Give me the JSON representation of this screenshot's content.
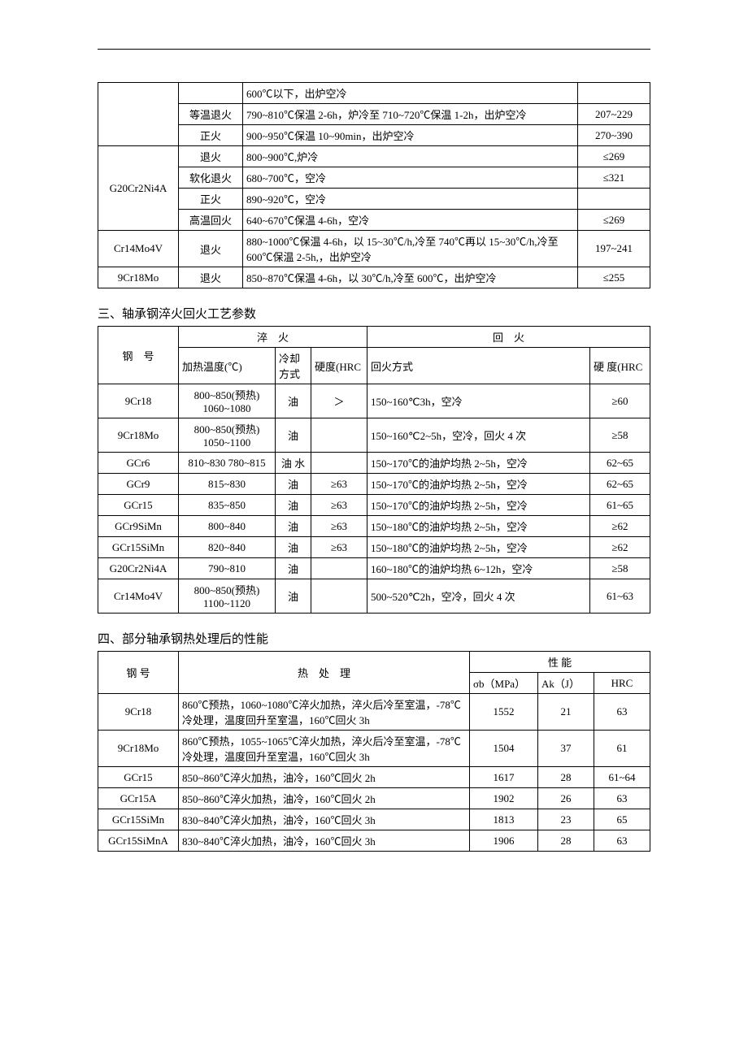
{
  "table1": {
    "rows": [
      {
        "steel": "",
        "method": "",
        "process": "600℃以下，出炉空冷",
        "hardness": ""
      },
      {
        "steel": "",
        "method": "等温退火",
        "process": "790~810℃保温 2-6h，炉冷至 710~720℃保温 1-2h，出炉空冷",
        "hardness": "207~229"
      },
      {
        "steel": "",
        "method": "正火",
        "process": "900~950℃保温 10~90min，出炉空冷",
        "hardness": "270~390"
      },
      {
        "steel": "G20Cr2Ni4A",
        "method": "退火",
        "process": "800~900℃,炉冷",
        "hardness": "≤269"
      },
      {
        "steel": "",
        "method": "软化退火",
        "process": "680~700℃，空冷",
        "hardness": "≤321"
      },
      {
        "steel": "",
        "method": "正火",
        "process": "890~920℃，空冷",
        "hardness": ""
      },
      {
        "steel": "",
        "method": "高温回火",
        "process": "640~670℃保温 4-6h，空冷",
        "hardness": "≤269"
      },
      {
        "steel": "Cr14Mo4V",
        "method": "退火",
        "process": "880~1000℃保温 4-6h，以 15~30℃/h,冷至 740℃再以 15~30℃/h,冷至 600℃保温 2-5h,，出炉空冷",
        "hardness": "197~241"
      },
      {
        "steel": "9Cr18Mo",
        "method": "退火",
        "process": "850~870℃保温 4-6h，以 30℃/h,冷至 600℃，出炉空冷",
        "hardness": "≤255"
      }
    ]
  },
  "section2_title": "三、轴承钢淬火回火工艺参数",
  "table2": {
    "header_quench": "淬　火",
    "header_temper": "回　火",
    "header_steel": "钢　号",
    "header_heat_temp": "加热温度(℃)",
    "header_cooling": "冷却方式",
    "header_hrc1": "硬度(HRC",
    "header_temper_method": "回火方式",
    "header_hrc2": "硬 度(HRC",
    "rows": [
      {
        "steel": "9Cr18",
        "temp": "800~850(预热) 1060~1080",
        "cool": "油",
        "hrc1": "＞",
        "method": "150~160℃3h，空冷",
        "hrc2": "≥60"
      },
      {
        "steel": "9Cr18Mo",
        "temp": "800~850(预热) 1050~1100",
        "cool": "油",
        "hrc1": "",
        "method": "150~160℃2~5h，空冷，回火 4 次",
        "hrc2": "≥58"
      },
      {
        "steel": "GCr6",
        "temp": "810~830 780~815",
        "cool": "油 水",
        "hrc1": "",
        "method": "150~170℃的油炉均热 2~5h，空冷",
        "hrc2": "62~65"
      },
      {
        "steel": "GCr9",
        "temp": "815~830",
        "cool": "油",
        "hrc1": "≥63",
        "method": "150~170℃的油炉均热 2~5h，空冷",
        "hrc2": "62~65"
      },
      {
        "steel": "GCr15",
        "temp": "835~850",
        "cool": "油",
        "hrc1": "≥63",
        "method": "150~170℃的油炉均热 2~5h，空冷",
        "hrc2": "61~65"
      },
      {
        "steel": "GCr9SiMn",
        "temp": "800~840",
        "cool": "油",
        "hrc1": "≥63",
        "method": "150~180℃的油炉均热 2~5h，空冷",
        "hrc2": "≥62"
      },
      {
        "steel": "GCr15SiMn",
        "temp": "820~840",
        "cool": "油",
        "hrc1": "≥63",
        "method": "150~180℃的油炉均热 2~5h，空冷",
        "hrc2": "≥62"
      },
      {
        "steel": "G20Cr2Ni4A",
        "temp": "790~810",
        "cool": "油",
        "hrc1": "",
        "method": "160~180℃的油炉均热 6~12h，空冷",
        "hrc2": "≥58"
      },
      {
        "steel": "Cr14Mo4V",
        "temp": "800~850(预热) 1100~1120",
        "cool": "油",
        "hrc1": "",
        "method": "500~520℃2h，空冷，回火 4 次",
        "hrc2": "61~63"
      }
    ]
  },
  "section3_title": "四、部分轴承钢热处理后的性能",
  "table3": {
    "header_steel": "钢 号",
    "header_treatment": "热　处　理",
    "header_properties": "性 能",
    "header_sigma": "σb（MPa）",
    "header_ak": "Ak（J）",
    "header_hrc": "HRC",
    "rows": [
      {
        "steel": "9Cr18",
        "treatment": "860℃预热，1060~1080℃淬火加热，淬火后冷至室温，-78℃冷处理，温度回升至室温，160℃回火 3h",
        "sigma": "1552",
        "ak": "21",
        "hrc": "63"
      },
      {
        "steel": "9Cr18Mo",
        "treatment": "860℃预热，1055~1065℃淬火加热，淬火后冷至室温，-78℃冷处理，温度回升至室温，160℃回火 3h",
        "sigma": "1504",
        "ak": "37",
        "hrc": "61"
      },
      {
        "steel": "GCr15",
        "treatment": "850~860℃淬火加热，油冷，160℃回火 2h",
        "sigma": "1617",
        "ak": "28",
        "hrc": "61~64"
      },
      {
        "steel": "GCr15A",
        "treatment": "850~860℃淬火加热，油冷，160℃回火 2h",
        "sigma": "1902",
        "ak": "26",
        "hrc": "63"
      },
      {
        "steel": "GCr15SiMn",
        "treatment": "830~840℃淬火加热，油冷，160℃回火 3h",
        "sigma": "1813",
        "ak": "23",
        "hrc": "65"
      },
      {
        "steel": "GCr15SiMnA",
        "treatment": "830~840℃淬火加热，油冷，160℃回火 3h",
        "sigma": "1906",
        "ak": "28",
        "hrc": "63"
      }
    ]
  }
}
